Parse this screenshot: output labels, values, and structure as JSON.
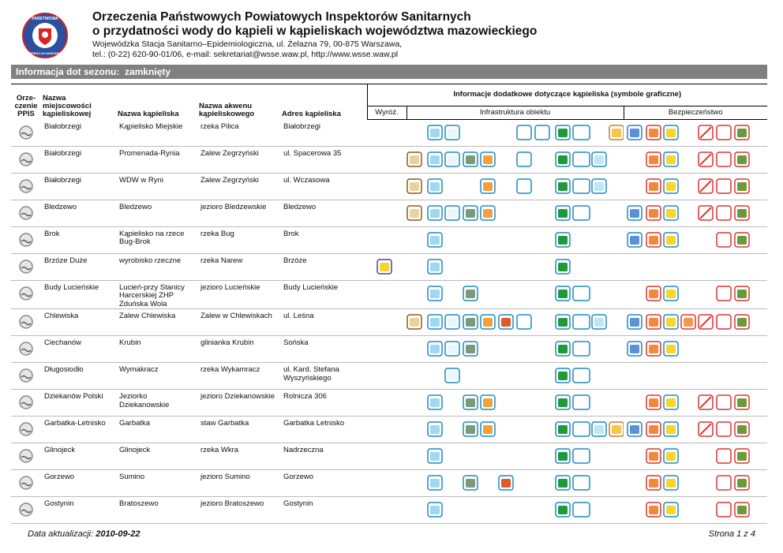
{
  "header": {
    "logo_text": [
      "PAŃSTWOWA",
      "INSPEKCJA SANITARNA"
    ],
    "title": [
      "Orzeczenia Państwowych Powiatowych Inspektorów Sanitarnych",
      "o przydatności wody do kąpieli w kąpieliskach województwa mazowieckiego"
    ],
    "subtitle": [
      "Wojewódzka Stacja Sanitarno–Epidemiologiczna, ul. Żelazna 79, 00-875 Warszawa,",
      "tel.: (0-22) 620-90-01/06, e-mail: sekretariat@wsse.waw.pl, http://www.wsse.waw.pl"
    ]
  },
  "season": {
    "label": "Informacja dot sezonu:",
    "value": "zamknięty"
  },
  "table": {
    "columns": [
      "Orze-\nczenie\nPPIS",
      "Nazwa\nmiejscowości\nkąpieliskowej",
      "Nazwa kąpieliska",
      "Nazwa akwenu\nkąpieliskowego",
      "Adres kąpieliska"
    ],
    "info_header": "Informacje dodatkowe dotyczące kąpieliska (symbole graficzne)",
    "info_subheaders": [
      "Wyróż.",
      "Infrastruktura obiektu",
      "Bezpieczeństwo"
    ],
    "rows": [
      [
        "Białobrzegi",
        "Kąpielisko Miejskie",
        "rzeka Pilica",
        "Białobrzegi"
      ],
      [
        "Białobrzegi",
        "Promenada-Rynia",
        "Zalew Zegrzyński",
        "ul. Spacerowa 35"
      ],
      [
        "Białobrzegi",
        "WDW w Ryni",
        "Zalew Zegrzyński",
        "ul. Wczasowa"
      ],
      [
        "Bledzewo",
        "Bledzewo",
        "jezioro Bledzewskie",
        "Bledzewo"
      ],
      [
        "Brok",
        "Kąpielisko na rzece Bug-Brok",
        "rzeka Bug",
        "Brok"
      ],
      [
        "Brzóze Duże",
        "wyrobisko rzeczne",
        "rzeka Narew",
        "Brzóze"
      ],
      [
        "Budy Lucieńskie",
        "Lucień-przy Stanicy Harcerskiej ZHP Zduńska Wola",
        "jezioro Lucieńskie",
        "Budy Lucieńskie"
      ],
      [
        "Chlewiska",
        "Zalew Chlewiska",
        "Zalew w Chlewiskach",
        "ul. Leśna"
      ],
      [
        "Ciechanów",
        "Krubin",
        "glinianka Krubin",
        "Sońska"
      ],
      [
        "Długosiodło",
        "Wymakracz",
        "rzeka Wykamracz",
        "ul. Kard. Stefana Wyszyńskiego"
      ],
      [
        "Dziekanów Polski",
        "Jeziorko Dziekanowskie",
        "jezioro Dziekanowskie",
        "Rolnicza 306"
      ],
      [
        "Garbatka-Letnisko",
        "Garbatka",
        "staw Garbatka",
        "Garbatka Letnisko"
      ],
      [
        "Glinojeck",
        "Glinojeck",
        "rzeka Wkra",
        "Nadrzeczna"
      ],
      [
        "Gorzewo",
        "Sumino",
        "jezioro Sumino",
        "Gorzewo"
      ],
      [
        "Gostynin",
        "Bratoszewo",
        "jezioro Bratoszewo",
        "Gostynin"
      ]
    ]
  },
  "footer": {
    "updated_label": "Data aktualizacji:",
    "updated_date": "2010-09-22",
    "page": "Strona 1 z 4"
  }
}
